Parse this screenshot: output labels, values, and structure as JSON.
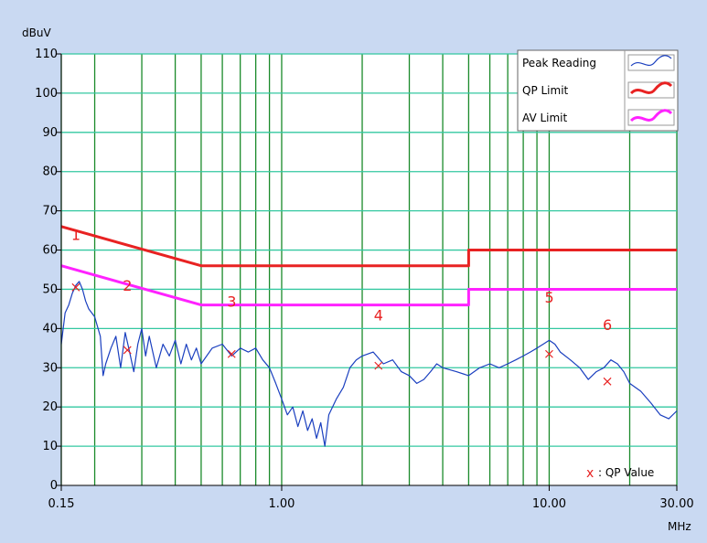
{
  "chart_data": {
    "type": "line",
    "x_scale": "log",
    "xlim": [
      0.15,
      30
    ],
    "ylim": [
      0,
      110
    ],
    "xlabel": "MHz",
    "ylabel": "dBuV",
    "x_ticks": [
      {
        "value": 0.15,
        "label": "0.15"
      },
      {
        "value": 1,
        "label": "1.00"
      },
      {
        "value": 10,
        "label": "10.00"
      },
      {
        "value": 30,
        "label": "30.00"
      }
    ],
    "y_ticks": [
      0,
      10,
      20,
      30,
      40,
      50,
      60,
      70,
      80,
      90,
      100,
      110
    ],
    "y_tick_labels": [
      "0",
      "10",
      "20",
      "30",
      "40",
      "50",
      "60",
      "70",
      "80",
      "90",
      "100",
      "110"
    ],
    "vertical_gridlines_mhz": [
      0.15,
      0.2,
      0.3,
      0.4,
      0.5,
      0.6,
      0.7,
      0.8,
      0.9,
      1,
      2,
      3,
      4,
      5,
      6,
      7,
      8,
      9,
      10,
      20,
      30
    ],
    "colors": {
      "background": "#c9d9f2",
      "plot_area": "#ffffff",
      "grid_vertical": "#1a8a2a",
      "grid_horizontal": "#33c8a0",
      "peak": "#1a3fbf",
      "qp_limit": "#e82222",
      "av_limit": "#ff22ff",
      "markers": "#e82222"
    },
    "legend": {
      "position": "top-right",
      "entries": [
        {
          "label": "Peak Reading",
          "color": "#1a3fbf"
        },
        {
          "label": "QP Limit",
          "color": "#e82222"
        },
        {
          "label": "AV Limit",
          "color": "#ff22ff"
        }
      ]
    },
    "series": [
      {
        "name": "QP Limit",
        "points": [
          [
            0.15,
            66
          ],
          [
            0.5,
            56
          ],
          [
            5,
            56
          ],
          [
            5,
            60
          ],
          [
            30,
            60
          ]
        ]
      },
      {
        "name": "AV Limit",
        "points": [
          [
            0.15,
            56
          ],
          [
            0.5,
            46
          ],
          [
            5,
            46
          ],
          [
            5,
            50
          ],
          [
            30,
            50
          ]
        ]
      },
      {
        "name": "Peak Reading",
        "points": [
          [
            0.15,
            36
          ],
          [
            0.155,
            44
          ],
          [
            0.16,
            46
          ],
          [
            0.165,
            49
          ],
          [
            0.17,
            51
          ],
          [
            0.175,
            52
          ],
          [
            0.18,
            50
          ],
          [
            0.185,
            47
          ],
          [
            0.19,
            45
          ],
          [
            0.2,
            43
          ],
          [
            0.21,
            38
          ],
          [
            0.215,
            28
          ],
          [
            0.22,
            31
          ],
          [
            0.23,
            35
          ],
          [
            0.24,
            38
          ],
          [
            0.25,
            30
          ],
          [
            0.26,
            39
          ],
          [
            0.27,
            34
          ],
          [
            0.28,
            29
          ],
          [
            0.29,
            36
          ],
          [
            0.3,
            40
          ],
          [
            0.31,
            33
          ],
          [
            0.32,
            38
          ],
          [
            0.34,
            30
          ],
          [
            0.36,
            36
          ],
          [
            0.38,
            33
          ],
          [
            0.4,
            37
          ],
          [
            0.42,
            31
          ],
          [
            0.44,
            36
          ],
          [
            0.46,
            32
          ],
          [
            0.48,
            35
          ],
          [
            0.5,
            31
          ],
          [
            0.55,
            35
          ],
          [
            0.6,
            36
          ],
          [
            0.65,
            33
          ],
          [
            0.7,
            35
          ],
          [
            0.75,
            34
          ],
          [
            0.8,
            35
          ],
          [
            0.85,
            32
          ],
          [
            0.9,
            30
          ],
          [
            0.95,
            26
          ],
          [
            1.0,
            22
          ],
          [
            1.05,
            18
          ],
          [
            1.1,
            20
          ],
          [
            1.15,
            15
          ],
          [
            1.2,
            19
          ],
          [
            1.25,
            14
          ],
          [
            1.3,
            17
          ],
          [
            1.35,
            12
          ],
          [
            1.4,
            16
          ],
          [
            1.45,
            10
          ],
          [
            1.5,
            18
          ],
          [
            1.6,
            22
          ],
          [
            1.7,
            25
          ],
          [
            1.8,
            30
          ],
          [
            1.9,
            32
          ],
          [
            2.0,
            33
          ],
          [
            2.2,
            34
          ],
          [
            2.4,
            31
          ],
          [
            2.6,
            32
          ],
          [
            2.8,
            29
          ],
          [
            3.0,
            28
          ],
          [
            3.2,
            26
          ],
          [
            3.4,
            27
          ],
          [
            3.6,
            29
          ],
          [
            3.8,
            31
          ],
          [
            4.0,
            30
          ],
          [
            4.5,
            29
          ],
          [
            5.0,
            28
          ],
          [
            5.5,
            30
          ],
          [
            6.0,
            31
          ],
          [
            6.5,
            30
          ],
          [
            7.0,
            31
          ],
          [
            7.5,
            32
          ],
          [
            8.0,
            33
          ],
          [
            8.5,
            34
          ],
          [
            9.0,
            35
          ],
          [
            9.5,
            36
          ],
          [
            10.0,
            37
          ],
          [
            10.5,
            36
          ],
          [
            11.0,
            34
          ],
          [
            12.0,
            32
          ],
          [
            13.0,
            30
          ],
          [
            14.0,
            27
          ],
          [
            15.0,
            29
          ],
          [
            16.0,
            30
          ],
          [
            17.0,
            32
          ],
          [
            18.0,
            31
          ],
          [
            19.0,
            29
          ],
          [
            20.0,
            26
          ],
          [
            22.0,
            24
          ],
          [
            24.0,
            21
          ],
          [
            26.0,
            18
          ],
          [
            28.0,
            17
          ],
          [
            30.0,
            19
          ]
        ]
      }
    ],
    "qp_values": [
      {
        "label": "1",
        "x": 0.17,
        "y": 50.5,
        "label_y": 64
      },
      {
        "label": "2",
        "x": 0.265,
        "y": 34.5,
        "label_y": 51
      },
      {
        "label": "3",
        "x": 0.65,
        "y": 33.5,
        "label_y": 47
      },
      {
        "label": "4",
        "x": 2.3,
        "y": 30.5,
        "label_y": 43.5
      },
      {
        "label": "5",
        "x": 10.0,
        "y": 33.5,
        "label_y": 48
      },
      {
        "label": "6",
        "x": 16.5,
        "y": 26.5,
        "label_y": 41
      }
    ],
    "qp_marker_legend": {
      "symbol": "x",
      "text": ": QP Value"
    }
  }
}
